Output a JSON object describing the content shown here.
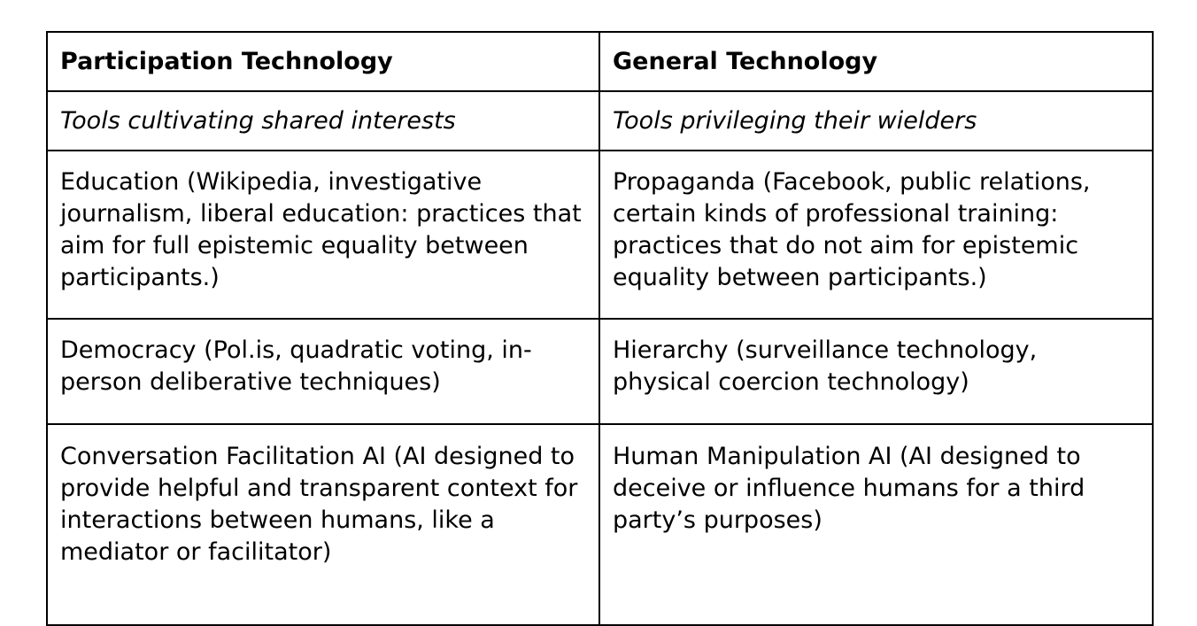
{
  "table": {
    "headers": [
      "Participation Technology",
      "General Technology"
    ],
    "subtitles": [
      "Tools cultivating shared interests",
      "Tools privileging their wielders"
    ],
    "rows": [
      {
        "left": "Education (Wikipedia, investigative journalism, liberal education: practices that aim for full epistemic equality between participants.)",
        "right": "Propaganda (Facebook, public relations, certain kinds of professional training: practices that do not aim for epistemic equality between participants.)"
      },
      {
        "left": "Democracy (Pol.is, quadratic voting, in-person deliberative techniques)",
        "right": "Hierarchy (surveillance technology, physical coercion technology)"
      },
      {
        "left": "Conversation Facilitation AI (AI designed to provide helpful and transparent context for interactions between humans, like a mediator or facilitator)",
        "right": "Human Manipulation AI (AI designed to deceive or influence humans for a third party’s purposes)"
      }
    ]
  }
}
